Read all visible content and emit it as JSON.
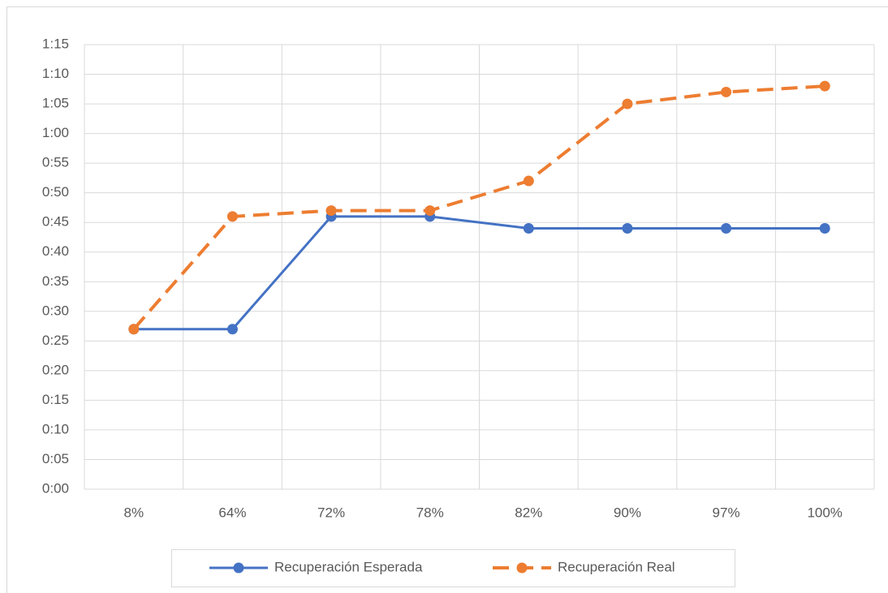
{
  "chart_data": {
    "type": "line",
    "categories": [
      "8%",
      "64%",
      "72%",
      "78%",
      "82%",
      "90%",
      "97%",
      "100%"
    ],
    "series": [
      {
        "name": "Recuperación Esperada",
        "color": "#4472c4",
        "dash": false,
        "values": [
          27,
          27,
          46,
          46,
          44,
          44,
          44,
          44
        ]
      },
      {
        "name": "Recuperación Real",
        "color": "#ed7d31",
        "dash": true,
        "values": [
          27,
          46,
          47,
          47,
          52,
          65,
          67,
          68
        ]
      }
    ],
    "ylim": [
      0,
      75
    ],
    "yticks": [
      {
        "value": 0,
        "label": "0:00"
      },
      {
        "value": 5,
        "label": "0:05"
      },
      {
        "value": 10,
        "label": "0:10"
      },
      {
        "value": 15,
        "label": "0:15"
      },
      {
        "value": 20,
        "label": "0:20"
      },
      {
        "value": 25,
        "label": "0:25"
      },
      {
        "value": 30,
        "label": "0:30"
      },
      {
        "value": 35,
        "label": "0:35"
      },
      {
        "value": 40,
        "label": "0:40"
      },
      {
        "value": 45,
        "label": "0:45"
      },
      {
        "value": 50,
        "label": "0:50"
      },
      {
        "value": 55,
        "label": "0:55"
      },
      {
        "value": 60,
        "label": "1:00"
      },
      {
        "value": 65,
        "label": "1:05"
      },
      {
        "value": 70,
        "label": "1:10"
      },
      {
        "value": 75,
        "label": "1:15"
      }
    ],
    "grid": true,
    "legend": "bottom"
  }
}
